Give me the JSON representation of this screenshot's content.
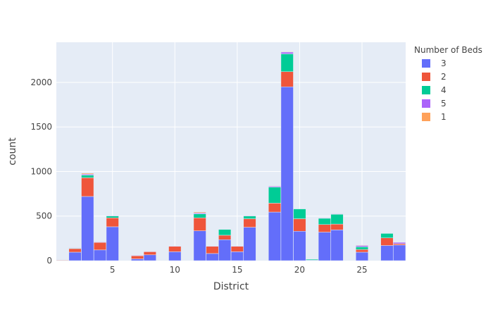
{
  "chart_data": {
    "type": "bar",
    "barmode": "stack",
    "xlabel": "District",
    "ylabel": "count",
    "xlim": [
      0.5,
      28.5
    ],
    "ylim": [
      0,
      2450
    ],
    "x_ticks": [
      5,
      10,
      15,
      20,
      25
    ],
    "y_ticks": [
      0,
      500,
      1000,
      1500,
      2000
    ],
    "grid": true,
    "legend": {
      "title": "Number of Beds",
      "position": "right"
    },
    "colors": {
      "plot_bg": "#E5ECF6",
      "grid": "#ffffff",
      "3": "#636EFA",
      "2": "#EF553B",
      "4": "#00CC96",
      "5": "#AB63FA",
      "1": "#FFA15A"
    },
    "categories": [
      1,
      2,
      3,
      4,
      5,
      6,
      7,
      8,
      9,
      10,
      11,
      12,
      13,
      14,
      15,
      16,
      17,
      18,
      19,
      20,
      21,
      22,
      23,
      24,
      25,
      26,
      27,
      28
    ],
    "series": [
      {
        "name": "3",
        "values": [
          0,
          95,
          720,
          120,
          380,
          0,
          20,
          65,
          0,
          100,
          0,
          335,
          80,
          235,
          100,
          375,
          0,
          545,
          1950,
          330,
          5,
          320,
          345,
          0,
          95,
          0,
          170,
          175
        ]
      },
      {
        "name": "2",
        "values": [
          5,
          40,
          210,
          85,
          100,
          0,
          35,
          35,
          0,
          60,
          0,
          145,
          80,
          50,
          60,
          95,
          0,
          100,
          170,
          140,
          0,
          85,
          65,
          0,
          30,
          0,
          85,
          15
        ]
      },
      {
        "name": "4",
        "values": [
          0,
          5,
          30,
          0,
          20,
          0,
          0,
          0,
          0,
          0,
          0,
          45,
          0,
          65,
          0,
          30,
          0,
          180,
          200,
          110,
          10,
          70,
          110,
          0,
          30,
          0,
          50,
          0
        ]
      },
      {
        "name": "5",
        "values": [
          0,
          5,
          10,
          5,
          5,
          0,
          5,
          5,
          0,
          5,
          0,
          10,
          5,
          0,
          5,
          5,
          0,
          10,
          20,
          0,
          0,
          5,
          5,
          0,
          15,
          0,
          0,
          15
        ]
      },
      {
        "name": "1",
        "values": [
          0,
          0,
          10,
          0,
          0,
          0,
          0,
          0,
          0,
          0,
          0,
          10,
          0,
          0,
          0,
          0,
          0,
          5,
          5,
          0,
          0,
          0,
          0,
          0,
          5,
          0,
          0,
          0
        ]
      }
    ]
  }
}
